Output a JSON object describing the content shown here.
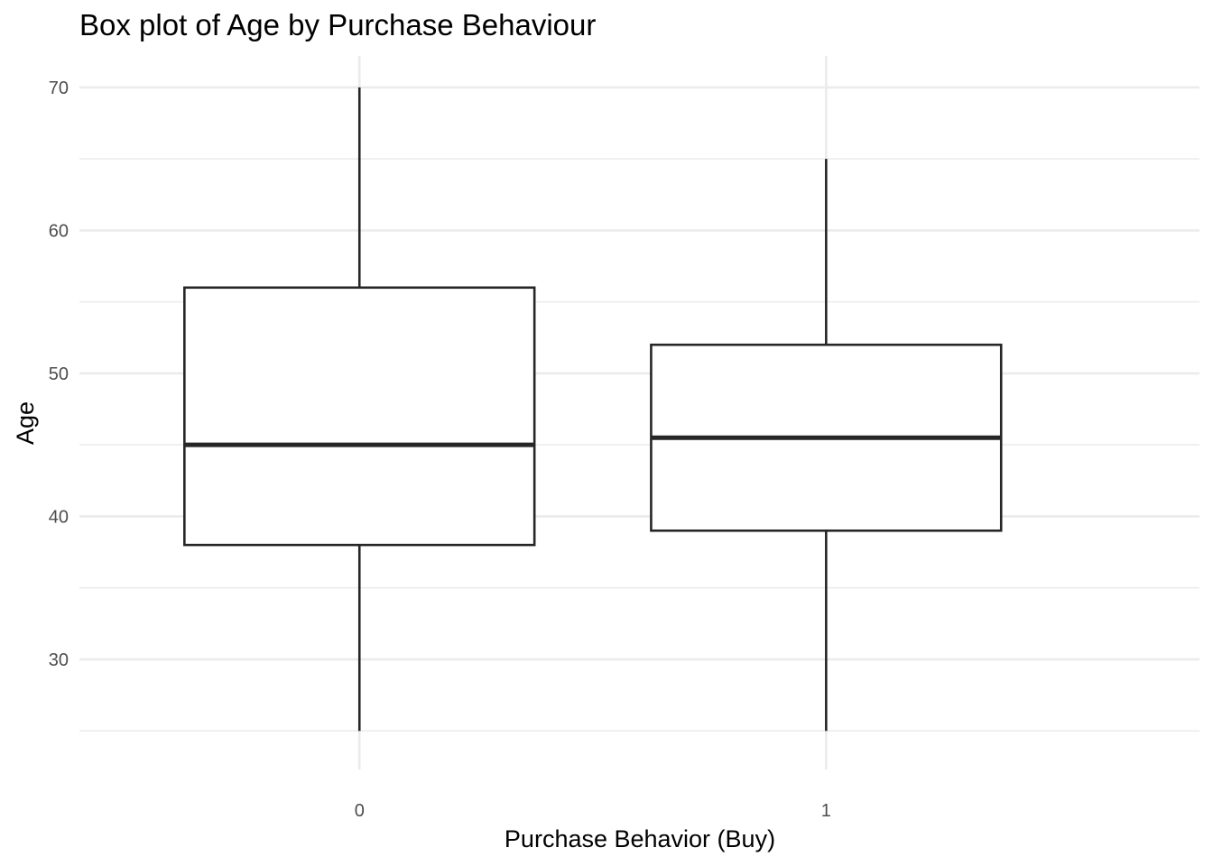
{
  "chart_data": {
    "type": "box",
    "title": "Box plot of Age by Purchase Behaviour",
    "xlabel": "Purchase Behavior (Buy)",
    "ylabel": "Age",
    "categories": [
      "0",
      "1"
    ],
    "boxes": [
      {
        "category": "0",
        "min": 25,
        "q1": 38,
        "median": 45,
        "q3": 56,
        "max": 70
      },
      {
        "category": "1",
        "min": 25,
        "q1": 39,
        "median": 45.5,
        "q3": 52,
        "max": 65
      }
    ],
    "ylim": [
      22.3,
      72.2
    ],
    "yticks": [
      30,
      40,
      50,
      60,
      70
    ],
    "grid": true,
    "legend": "none",
    "colors": {
      "box_line": "#262626",
      "box_fill": "#ffffff",
      "grid": "#ebebeb",
      "tick_text": "#4d4d4d"
    }
  }
}
